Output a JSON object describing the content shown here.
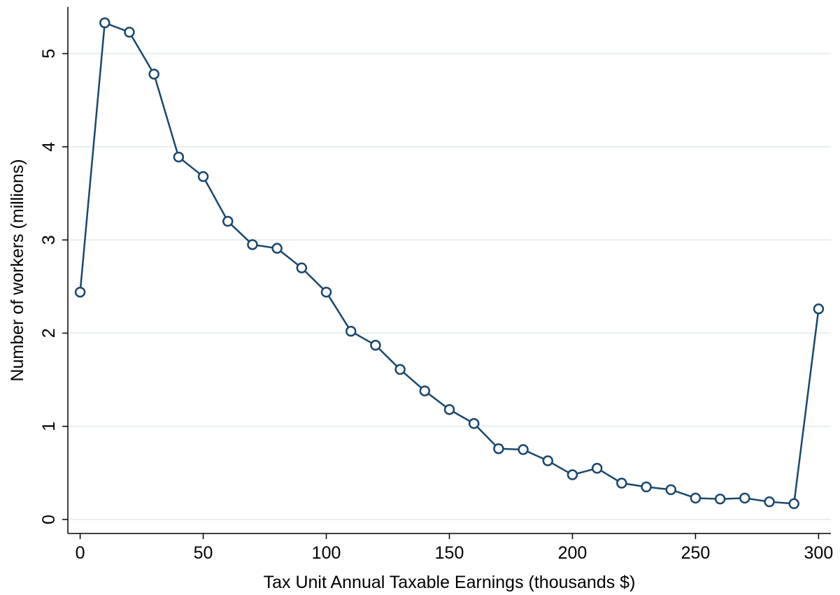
{
  "chart_data": {
    "type": "line",
    "title": "",
    "xlabel": "Tax Unit Annual Taxable Earnings (thousands $)",
    "ylabel": "Number of workers (millions)",
    "xlim": [
      -5,
      305
    ],
    "ylim": [
      -0.15,
      5.5
    ],
    "xticks": [
      0,
      50,
      100,
      150,
      200,
      250,
      300
    ],
    "yticks": [
      0,
      1,
      2,
      3,
      4,
      5
    ],
    "grid": "horizontal",
    "marker": "hollow-circle",
    "line_color": "#1a476f",
    "grid_color": "#e8eef1",
    "series": [
      {
        "x": [
          0,
          10,
          20,
          30,
          40,
          50,
          60,
          70,
          80,
          90,
          100,
          110,
          120,
          130,
          140,
          150,
          160,
          170,
          180,
          190,
          200,
          210,
          220,
          230,
          240,
          250,
          260,
          270,
          280,
          290,
          300
        ],
        "values": [
          2.44,
          5.33,
          5.23,
          4.78,
          3.89,
          3.68,
          3.2,
          2.95,
          2.91,
          2.7,
          2.44,
          2.02,
          1.87,
          1.61,
          1.38,
          1.18,
          1.03,
          0.76,
          0.75,
          0.63,
          0.48,
          0.55,
          0.39,
          0.35,
          0.32,
          0.23,
          0.22,
          0.23,
          0.19,
          0.17,
          2.26
        ]
      }
    ]
  }
}
